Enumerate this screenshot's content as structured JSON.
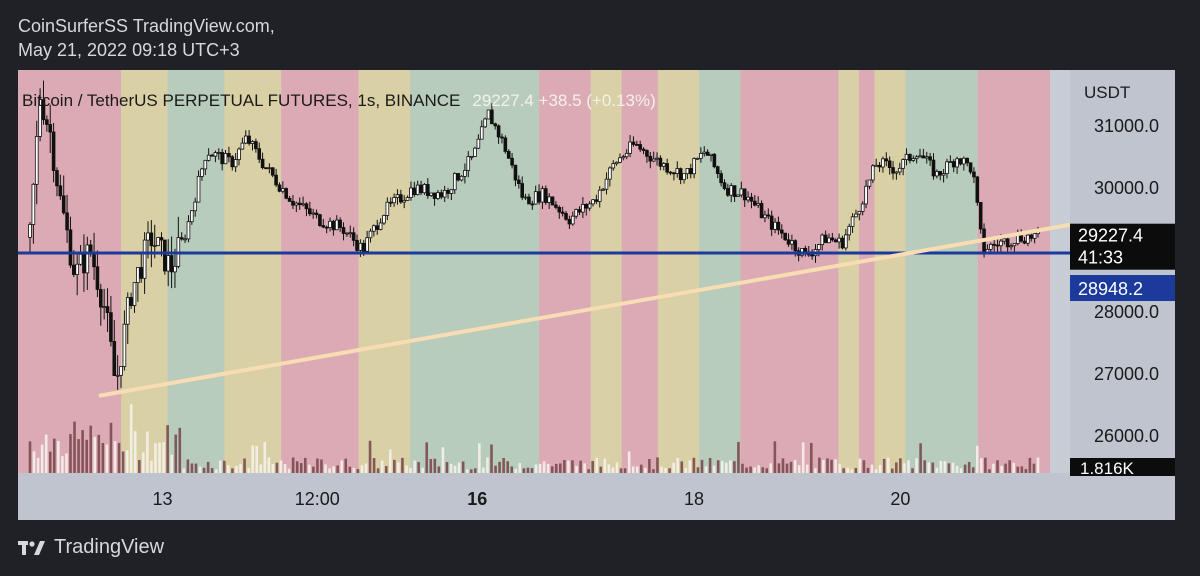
{
  "header": {
    "author_line": "CoinSurferSS TradingView.com,",
    "date_line": "May 21, 2022 09:18 UTC+3"
  },
  "footer": {
    "brand": "TradingView",
    "logo_icon": "tradingview-logo-icon"
  },
  "chart_data": {
    "type": "candlestick",
    "symbol_line": "Bitcoin / TetherUS PERPETUAL FUTURES, 1s, BINANCE",
    "last_price": "29227.4",
    "change": "+38.5 (+0.13%)",
    "currency": "USDT",
    "y_ticks": [
      "31000.0",
      "30000.0",
      "28000.0",
      "27000.0",
      "26000.0"
    ],
    "y_range": [
      25400,
      31900
    ],
    "x_ticks": [
      {
        "label": "13",
        "bold": false
      },
      {
        "label": "12:00",
        "bold": false
      },
      {
        "label": "16",
        "bold": true
      },
      {
        "label": "18",
        "bold": false
      },
      {
        "label": "20",
        "bold": false
      }
    ],
    "price_badge": {
      "value": "29227.4",
      "countdown": "41:33"
    },
    "level_badge": {
      "value": "28948.2"
    },
    "volume_badge": "1.816K",
    "horizontal_level": 28948.2,
    "trendline": {
      "start": {
        "t": 0.07,
        "price": 26650
      },
      "end": {
        "t": 1.0,
        "price": 29460
      }
    },
    "price_path": [
      {
        "t": 0.0,
        "p": 29200
      },
      {
        "t": 0.01,
        "p": 31500
      },
      {
        "t": 0.02,
        "p": 30900
      },
      {
        "t": 0.03,
        "p": 29800
      },
      {
        "t": 0.045,
        "p": 28600
      },
      {
        "t": 0.06,
        "p": 29000
      },
      {
        "t": 0.075,
        "p": 28000
      },
      {
        "t": 0.085,
        "p": 26800
      },
      {
        "t": 0.1,
        "p": 28300
      },
      {
        "t": 0.12,
        "p": 29200
      },
      {
        "t": 0.14,
        "p": 28700
      },
      {
        "t": 0.155,
        "p": 29300
      },
      {
        "t": 0.175,
        "p": 30600
      },
      {
        "t": 0.2,
        "p": 30400
      },
      {
        "t": 0.215,
        "p": 30800
      },
      {
        "t": 0.235,
        "p": 30300
      },
      {
        "t": 0.26,
        "p": 29800
      },
      {
        "t": 0.285,
        "p": 29500
      },
      {
        "t": 0.31,
        "p": 29350
      },
      {
        "t": 0.33,
        "p": 29000
      },
      {
        "t": 0.35,
        "p": 29600
      },
      {
        "t": 0.38,
        "p": 30000
      },
      {
        "t": 0.41,
        "p": 29900
      },
      {
        "t": 0.44,
        "p": 30500
      },
      {
        "t": 0.455,
        "p": 31200
      },
      {
        "t": 0.47,
        "p": 30700
      },
      {
        "t": 0.49,
        "p": 29800
      },
      {
        "t": 0.51,
        "p": 29900
      },
      {
        "t": 0.535,
        "p": 29500
      },
      {
        "t": 0.56,
        "p": 29800
      },
      {
        "t": 0.58,
        "p": 30400
      },
      {
        "t": 0.6,
        "p": 30700
      },
      {
        "t": 0.625,
        "p": 30400
      },
      {
        "t": 0.65,
        "p": 30200
      },
      {
        "t": 0.67,
        "p": 30600
      },
      {
        "t": 0.69,
        "p": 30000
      },
      {
        "t": 0.71,
        "p": 29900
      },
      {
        "t": 0.73,
        "p": 29500
      },
      {
        "t": 0.75,
        "p": 29200
      },
      {
        "t": 0.77,
        "p": 28900
      },
      {
        "t": 0.79,
        "p": 29200
      },
      {
        "t": 0.805,
        "p": 29100
      },
      {
        "t": 0.82,
        "p": 29600
      },
      {
        "t": 0.84,
        "p": 30400
      },
      {
        "t": 0.86,
        "p": 30300
      },
      {
        "t": 0.88,
        "p": 30600
      },
      {
        "t": 0.9,
        "p": 30200
      },
      {
        "t": 0.92,
        "p": 30500
      },
      {
        "t": 0.935,
        "p": 30300
      },
      {
        "t": 0.945,
        "p": 29000
      },
      {
        "t": 0.96,
        "p": 29100
      },
      {
        "t": 0.98,
        "p": 29200
      },
      {
        "t": 1.0,
        "p": 29227
      }
    ],
    "background_bands": [
      {
        "end": 0.1,
        "color": "#dcaab4"
      },
      {
        "end": 0.145,
        "color": "#d9d0a6"
      },
      {
        "end": 0.2,
        "color": "#b8ccbc"
      },
      {
        "end": 0.255,
        "color": "#d9d0a6"
      },
      {
        "end": 0.33,
        "color": "#dcaab4"
      },
      {
        "end": 0.38,
        "color": "#d9d0a6"
      },
      {
        "end": 0.42,
        "color": "#b8ccbc"
      },
      {
        "end": 0.505,
        "color": "#b8ccbc"
      },
      {
        "end": 0.555,
        "color": "#dcaab4"
      },
      {
        "end": 0.585,
        "color": "#d9d0a6"
      },
      {
        "end": 0.62,
        "color": "#dcaab4"
      },
      {
        "end": 0.66,
        "color": "#d9d0a6"
      },
      {
        "end": 0.7,
        "color": "#b8ccbc"
      },
      {
        "end": 0.795,
        "color": "#dcaab4"
      },
      {
        "end": 0.815,
        "color": "#d9d0a6"
      },
      {
        "end": 0.83,
        "color": "#dcaab4"
      },
      {
        "end": 0.86,
        "color": "#d9d0a6"
      },
      {
        "end": 0.93,
        "color": "#b8ccbc"
      },
      {
        "end": 1.0,
        "color": "#dcaab4"
      }
    ],
    "colors": {
      "level_line": "#1b3a9c",
      "trendline": "#f7dcb4",
      "candle": "#111111",
      "axis_panel": "#bfc4ce",
      "badge_dark": "#0c0c0c",
      "badge_blue": "#1b3a9c"
    }
  }
}
